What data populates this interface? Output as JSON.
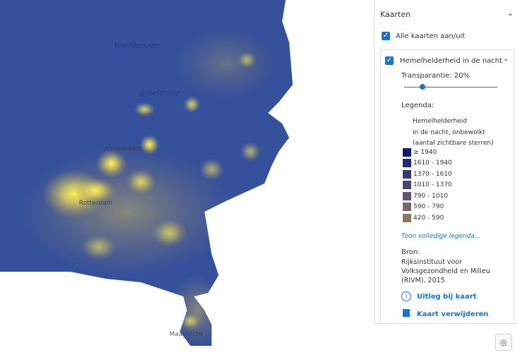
{
  "map": {
    "labels": [
      "Waddenzee",
      "IJsselmeer",
      "Amsterdam",
      "Rotterdam",
      "Maastricht"
    ]
  },
  "panel": {
    "header": "Kaarten",
    "toggle_all": "Alle kaarten aan/uit",
    "layer": {
      "title": "Hemelhelderheid in de nacht",
      "transparency": "Transparantie: 20%",
      "legend_heading": "Legenda:",
      "legend_title": [
        "Hemelhelderheid",
        "in de nacht, onbewolkt",
        "(aantal zichtbare sterren)"
      ],
      "legend_items": [
        {
          "label": "≥ 1940",
          "color": "#0b1c6e"
        },
        {
          "label": "1610 - 1940",
          "color": "#1f2b72"
        },
        {
          "label": "1370 - 1610",
          "color": "#363b72"
        },
        {
          "label": "1010 - 1370",
          "color": "#4a4770"
        },
        {
          "label": "790 - 1010",
          "color": "#5f566e"
        },
        {
          "label": "590 - 790",
          "color": "#77696a"
        },
        {
          "label": "420 - 590",
          "color": "#8b7a5c"
        }
      ],
      "full_legend": "Toon volledige legenda...",
      "source_heading": "Bron:",
      "source": "Rijksinstituut voor Volksgezondheid en Milieu (RIVM), 2015",
      "explain": "Uitleg bij kaart",
      "remove": "Kaart verwijderen"
    }
  }
}
